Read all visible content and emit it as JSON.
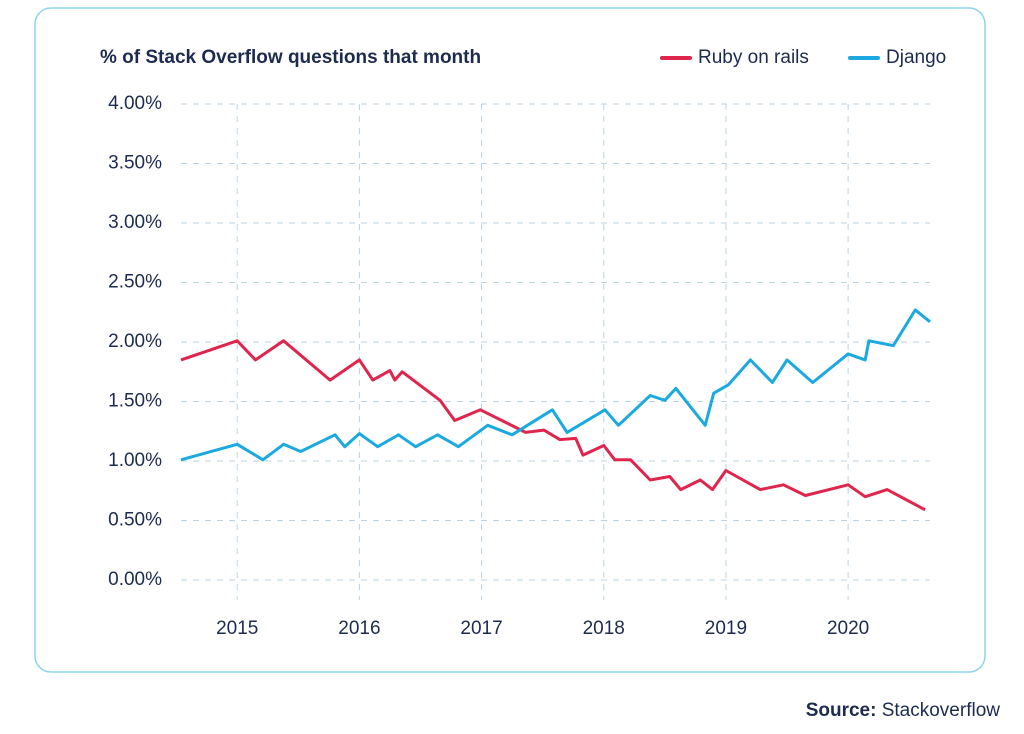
{
  "chart_data": {
    "type": "line",
    "title": "% of Stack Overflow questions that month",
    "source_label": "Source:",
    "source": "Stackoverflow",
    "xlim": [
      2014.54,
      2020.67
    ],
    "xticks": [
      2015,
      2016,
      2017,
      2018,
      2019,
      2020
    ],
    "ylim": [
      0,
      4
    ],
    "yticks": [
      {
        "value": 0,
        "label": "0.00%"
      },
      {
        "value": 0.5,
        "label": "0.50%"
      },
      {
        "value": 1,
        "label": "1.00%"
      },
      {
        "value": 1.5,
        "label": "1.50%"
      },
      {
        "value": 2,
        "label": "2.00%"
      },
      {
        "value": 2.5,
        "label": "2.50%"
      },
      {
        "value": 3,
        "label": "3.00%"
      },
      {
        "value": 3.5,
        "label": "3.50%"
      },
      {
        "value": 4,
        "label": "4.00%"
      }
    ],
    "grid": true,
    "legend": "top-right",
    "series": [
      {
        "name": "Ruby on rails",
        "color": "#e0254d",
        "x": [
          2014.54,
          2015.0,
          2015.15,
          2015.38,
          2015.76,
          2016.0,
          2016.11,
          2016.25,
          2016.29,
          2016.35,
          2016.66,
          2016.78,
          2016.99,
          2017.36,
          2017.51,
          2017.64,
          2017.77,
          2017.83,
          2018.0,
          2018.09,
          2018.22,
          2018.38,
          2018.54,
          2018.63,
          2018.79,
          2018.89,
          2019.0,
          2019.28,
          2019.47,
          2019.65,
          2020.0,
          2020.14,
          2020.32,
          2020.63
        ],
        "values": [
          1.85,
          2.01,
          1.85,
          2.01,
          1.68,
          1.85,
          1.68,
          1.76,
          1.68,
          1.75,
          1.51,
          1.34,
          1.43,
          1.24,
          1.26,
          1.18,
          1.19,
          1.05,
          1.13,
          1.01,
          1.01,
          0.84,
          0.87,
          0.76,
          0.84,
          0.76,
          0.92,
          0.76,
          0.8,
          0.71,
          0.8,
          0.7,
          0.76,
          0.59
        ]
      },
      {
        "name": "Django",
        "color": "#1ba9e0",
        "x": [
          2014.54,
          2015.0,
          2015.21,
          2015.38,
          2015.52,
          2015.8,
          2015.88,
          2016.0,
          2016.15,
          2016.32,
          2016.46,
          2016.64,
          2016.81,
          2017.05,
          2017.25,
          2017.58,
          2017.7,
          2018.01,
          2018.12,
          2018.38,
          2018.5,
          2018.59,
          2018.83,
          2018.9,
          2019.02,
          2019.2,
          2019.38,
          2019.5,
          2019.71,
          2020.0,
          2020.14,
          2020.17,
          2020.37,
          2020.55,
          2020.67
        ],
        "values": [
          1.01,
          1.14,
          1.01,
          1.14,
          1.08,
          1.22,
          1.12,
          1.23,
          1.12,
          1.22,
          1.12,
          1.22,
          1.12,
          1.3,
          1.22,
          1.43,
          1.24,
          1.43,
          1.3,
          1.55,
          1.51,
          1.61,
          1.3,
          1.57,
          1.64,
          1.85,
          1.66,
          1.85,
          1.66,
          1.9,
          1.85,
          2.01,
          1.97,
          2.27,
          2.17
        ]
      }
    ]
  }
}
